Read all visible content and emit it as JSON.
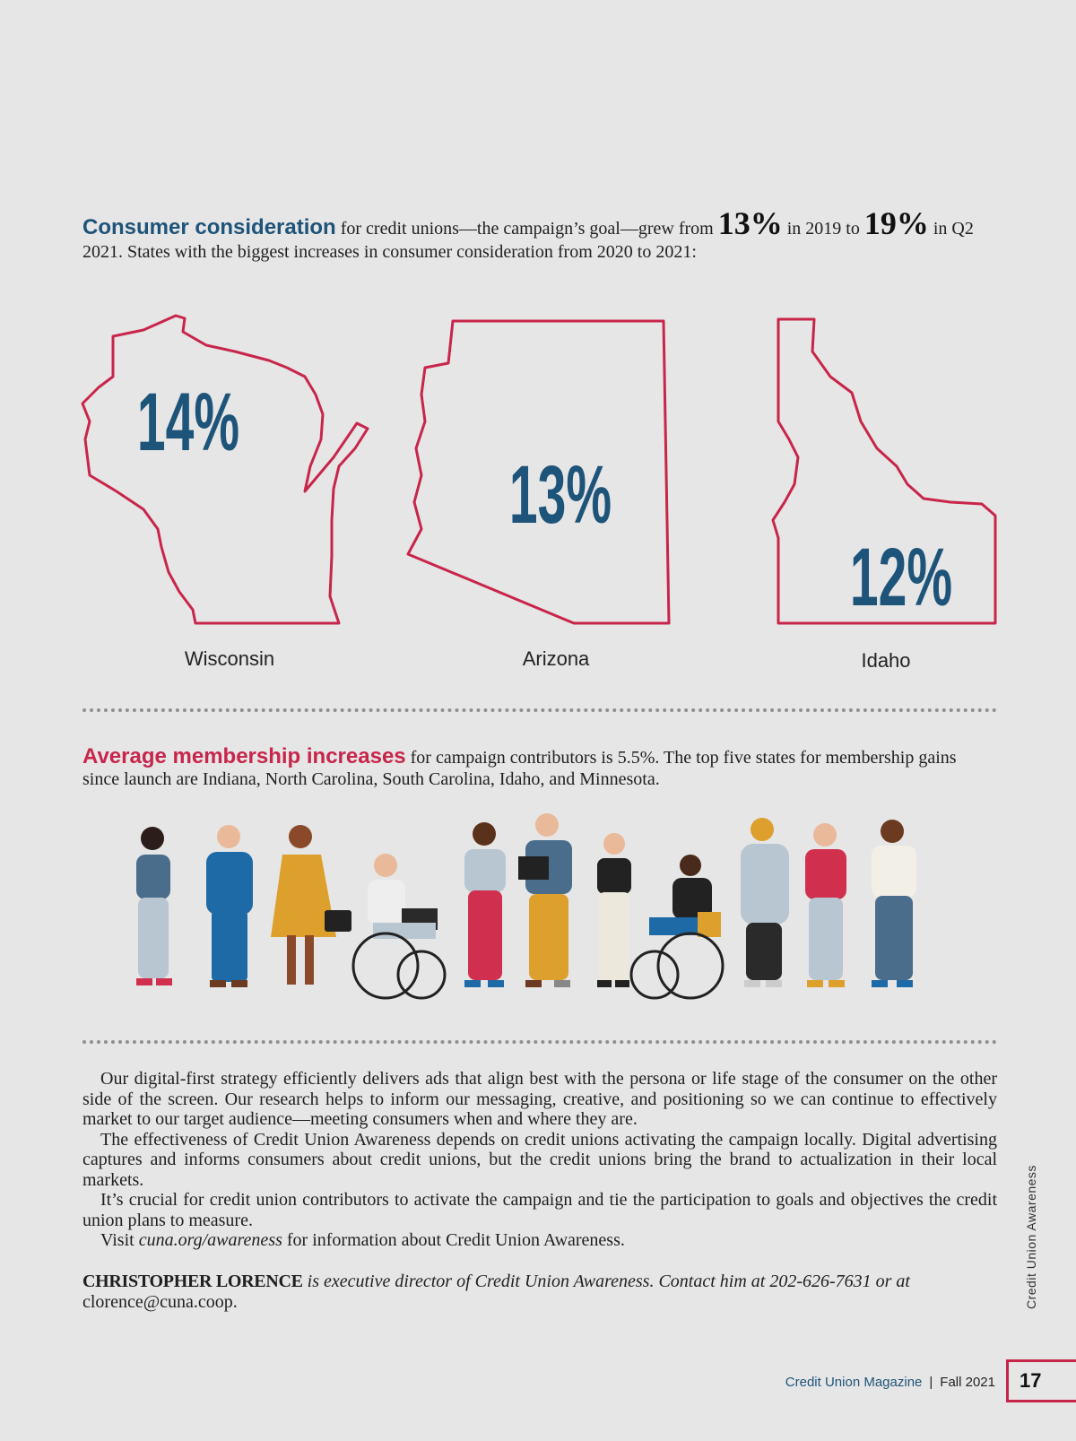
{
  "section1": {
    "highlight": "Consumer consideration",
    "text_a": "for credit unions—the campaign’s goal—grew from",
    "num_2019": "13%",
    "text_b": "in 2019 to",
    "num_2021": "19%",
    "text_c": "in Q2 2021. States with the biggest increases in consumer consideration from 2020 to 2021:"
  },
  "states": [
    {
      "name": "Wisconsin",
      "value": "14%"
    },
    {
      "name": "Arizona",
      "value": "13%"
    },
    {
      "name": "Idaho",
      "value": "12%"
    }
  ],
  "section2": {
    "highlight": "Average membership increases",
    "text": "for campaign contributors is 5.5%. The top five states for membership gains since launch are Indiana, North Carolina, South Carolina, Idaho, and Minnesota."
  },
  "body": {
    "p1": "Our digital-first strategy efficiently delivers ads that align best with the persona or life stage of the consumer on the other side of the screen. Our research helps to inform our messaging, creative, and positioning so we can continue to effectively market to our target audience—meeting consumers when and where they are.",
    "p2": "The effectiveness of Credit Union Awareness depends on credit unions activating the campaign locally. Digital advertising captures and informs consumers about credit unions, but the credit unions bring the brand to actualization in their local markets.",
    "p3": "It’s crucial for credit union contributors to activate the campaign and tie the participation to goals and objectives the credit union plans to measure.",
    "p4_a": "Visit",
    "p4_link": "cuna.org/awareness",
    "p4_b": "for information about Credit Union Awareness."
  },
  "bio": {
    "name": "CHRISTOPHER LORENCE",
    "text": "is executive director of Credit Union Awareness. Contact him at 202-626-7631 or at",
    "email": "clorence@cuna.coop."
  },
  "sidebar_label": "Credit Union Awareness",
  "footer": {
    "magazine": "Credit Union Magazine",
    "separator": "|",
    "issue": "Fall 2021",
    "page_number": "17"
  },
  "colors": {
    "blue": "#1e5479",
    "red": "#c8254a",
    "background": "#e6e6e6"
  }
}
